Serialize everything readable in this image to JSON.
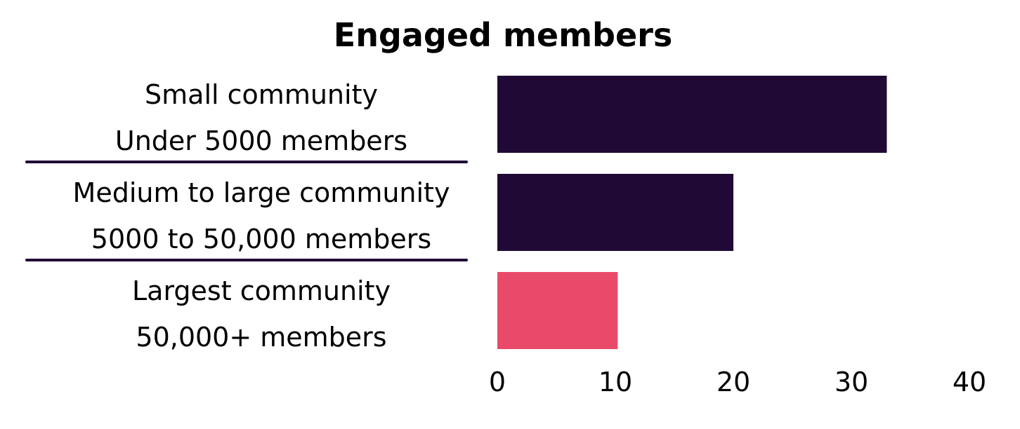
{
  "chart_data": {
    "type": "bar",
    "orientation": "horizontal",
    "title": "Engaged members",
    "categories": [
      [
        "Small community",
        "Under 5000 members"
      ],
      [
        "Medium to large community",
        "5000 to 50,000 members"
      ],
      [
        "Largest community",
        "50,000+ members"
      ]
    ],
    "values": [
      33,
      20,
      10.2
    ],
    "colors": [
      "#200a35",
      "#200a35",
      "#e94a6a"
    ],
    "xlim": [
      0,
      40
    ],
    "xticks": [
      0,
      10,
      20,
      30,
      40
    ],
    "xlabel": "",
    "ylabel": "",
    "grid": false,
    "separators_between_categories": true,
    "separator_color": "#200a35"
  }
}
